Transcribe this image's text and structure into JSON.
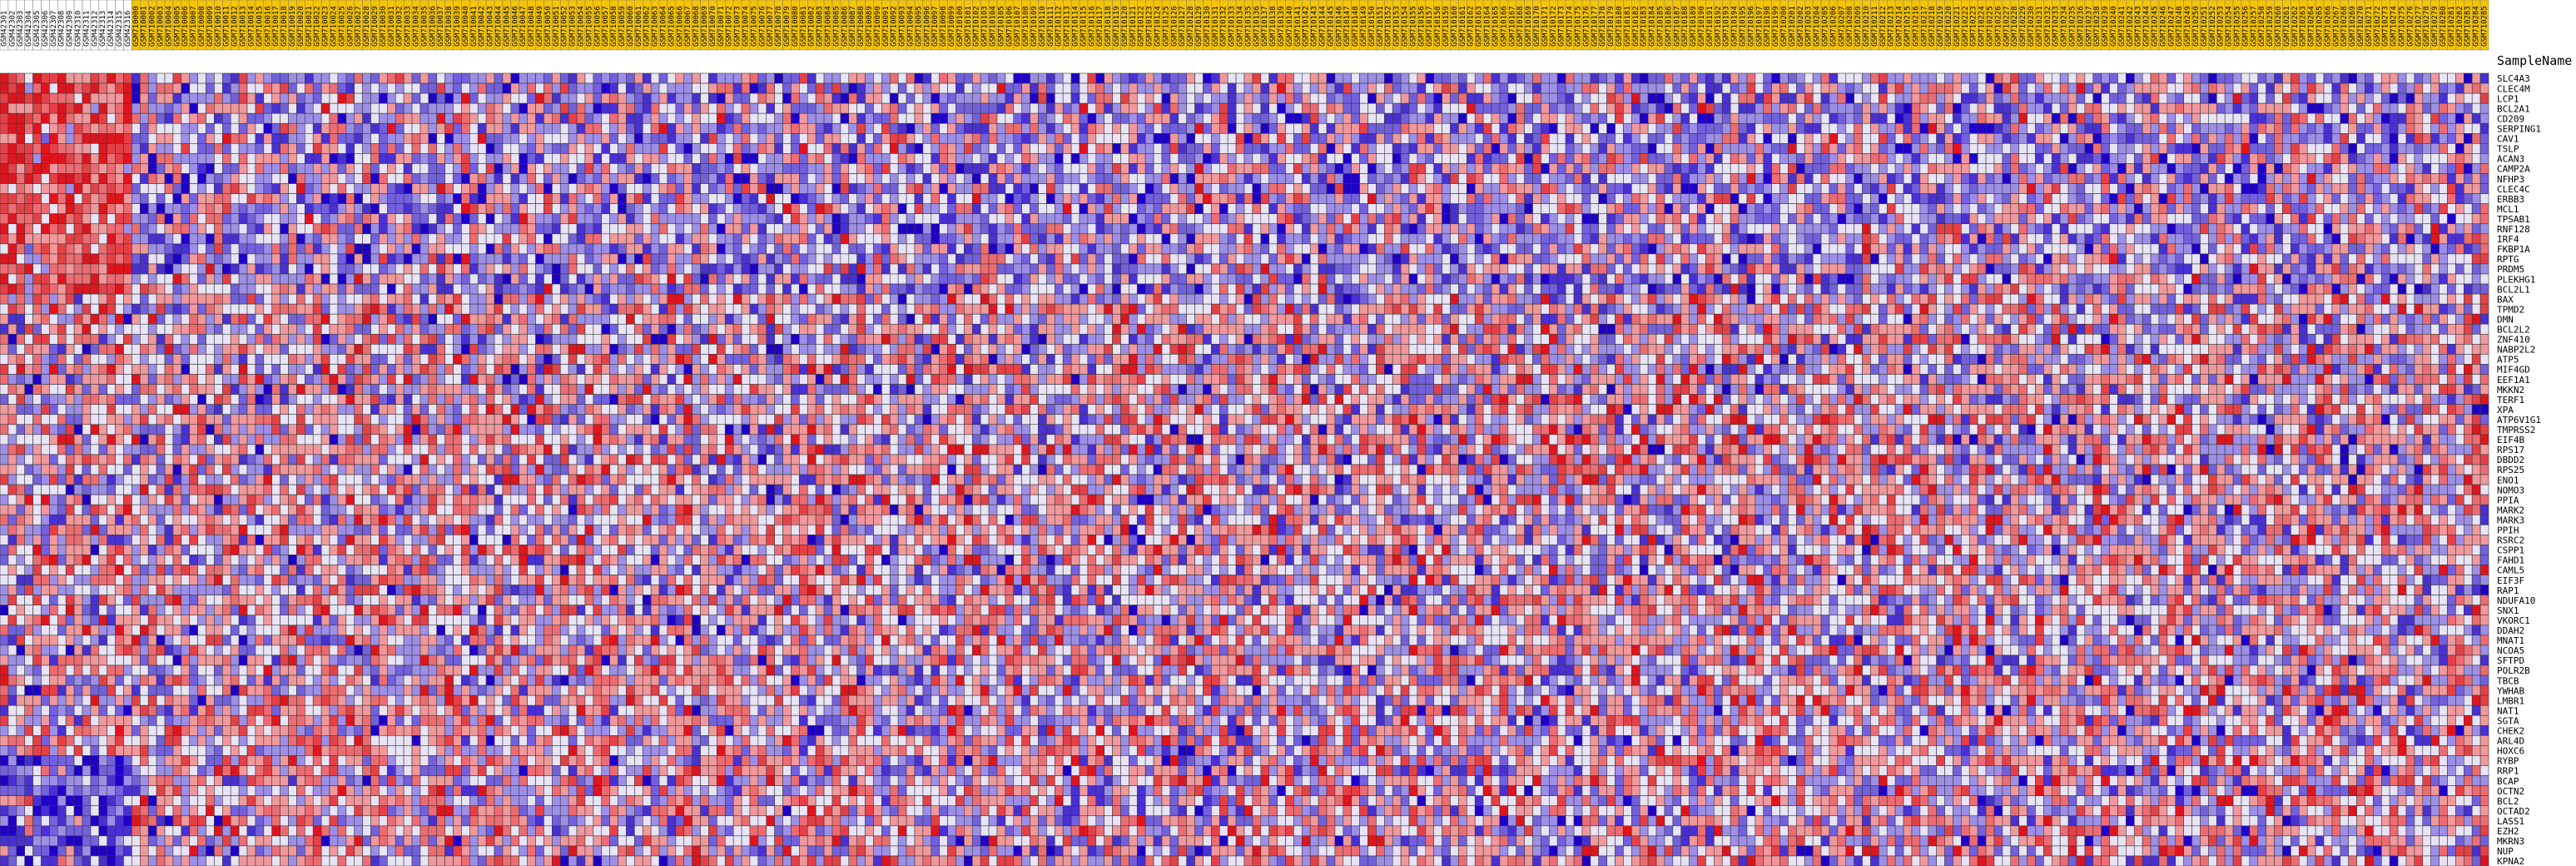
{
  "chart_data": {
    "type": "heatmap",
    "row_axis_label": "SampleName",
    "rows": [
      "SLC4A3",
      "CLEC4M",
      "LCP1",
      "BCL2A1",
      "CD209",
      "SERPING1",
      "CAV1",
      "TSLP",
      "ACAN3",
      "CAMP2A",
      "NFHP3",
      "CLEC4C",
      "ERBB3",
      "MCL1",
      "TPSAB1",
      "RNF128",
      "IRF4",
      "FKBP1A",
      "RPTG",
      "PRDM5",
      "PLEKHG1",
      "BCL2L1",
      "BAX",
      "TPMD2",
      "DMN",
      "BCL2L2",
      "ZNF410",
      "NABP2L2",
      "ATP5",
      "MIF4GD",
      "EEF1A1",
      "MKKN2",
      "TERF1",
      "XPA",
      "ATP6V1G1",
      "TMPRSS2",
      "EIF4B",
      "RPS17",
      "DBDD2",
      "RPS25",
      "ENO1",
      "NOMO3",
      "PPIA",
      "MARK2",
      "MARK3",
      "PPIH",
      "RSRC2",
      "CSPP1",
      "FAHD1",
      "CAML5",
      "EIF3F",
      "RAP1",
      "NDUFA10",
      "SNX1",
      "VKORC1",
      "DDAH2",
      "MNAT1",
      "NCOA5",
      "SFTPD",
      "POLR2B",
      "TBCB",
      "YWHAB",
      "LMBR1",
      "NAT1",
      "SGTA",
      "CHEK2",
      "ARL4D",
      "HOXC6",
      "RYBP",
      "RRP1",
      "BCAP",
      "OCTN2",
      "BCL2",
      "OCTAD2",
      "LASS1",
      "EZH2",
      "MKRN3",
      "NUP",
      "KPNA2"
    ],
    "group_a_columns": [
      "GSM42301",
      "GSM42302",
      "GSM42303",
      "GSM42304",
      "GSM42305",
      "GSM42306",
      "GSM42307",
      "GSM42308",
      "GSM42309",
      "GSM42310",
      "GSM42311",
      "GSM42312",
      "GSM42313",
      "GSM42314",
      "GSM42315",
      "GSM42316"
    ],
    "group_b_label_prefix": "GSM7",
    "group_b_count": 286,
    "color_scale": {
      "high": "#e0141d",
      "mid": "#ffffff",
      "low": "#1e00c8"
    },
    "group_a_header_color": "#ffffff",
    "group_b_header_color": "#f6c400",
    "values_note": "expression z-score per cell",
    "seed": 1123
  }
}
